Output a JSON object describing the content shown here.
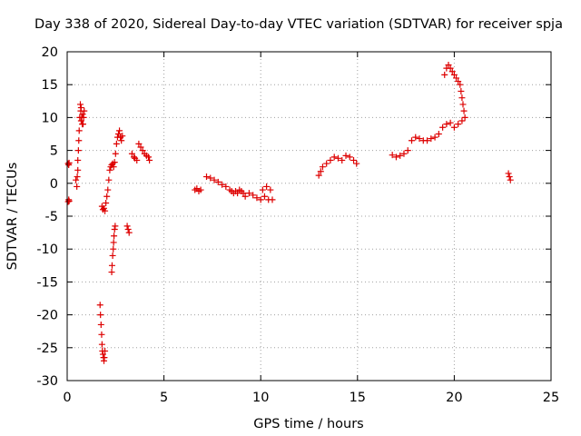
{
  "chart_data": {
    "type": "scatter",
    "title": "Day 338 of 2020, Sidereal Day-to-day VTEC variation (SDTVAR) for receiver spja",
    "xlabel": "GPS time / hours",
    "ylabel": "SDTVAR / TECUs",
    "xlim": [
      0,
      25
    ],
    "ylim": [
      -30,
      20
    ],
    "xticks": [
      "0",
      "5",
      "10",
      "15",
      "20",
      "25"
    ],
    "yticks": [
      "-30",
      "-25",
      "-20",
      "-15",
      "-10",
      "-5",
      "0",
      "5",
      "10",
      "15",
      "20"
    ],
    "grid": true,
    "marker": "plus",
    "color": "#dd0000",
    "x": [
      0.05,
      0.08,
      0.1,
      0.05,
      0.08,
      0.1,
      0.45,
      0.5,
      0.52,
      0.55,
      0.55,
      0.58,
      0.6,
      0.62,
      0.65,
      0.68,
      0.7,
      0.72,
      0.72,
      0.75,
      0.78,
      0.8,
      0.82,
      0.85,
      0.88,
      1.7,
      1.72,
      1.75,
      1.78,
      1.8,
      1.82,
      1.85,
      1.88,
      1.9,
      1.92,
      1.95,
      1.8,
      1.85,
      1.9,
      1.95,
      2.0,
      2.05,
      2.1,
      2.15,
      2.2,
      2.25,
      2.3,
      2.35,
      2.4,
      2.45,
      2.5,
      2.55,
      2.6,
      2.65,
      2.7,
      2.75,
      2.8,
      2.85,
      2.3,
      2.32,
      2.35,
      2.38,
      2.4,
      2.42,
      2.45,
      2.48,
      3.1,
      3.15,
      3.2,
      3.35,
      3.45,
      3.5,
      3.6,
      3.7,
      3.8,
      3.9,
      4.0,
      4.1,
      4.2,
      4.25,
      6.6,
      6.7,
      6.8,
      6.9,
      7.2,
      7.4,
      7.6,
      7.8,
      8.0,
      8.2,
      8.4,
      8.5,
      8.6,
      8.7,
      8.8,
      8.9,
      9.0,
      9.1,
      9.2,
      9.4,
      9.6,
      9.8,
      10.0,
      10.1,
      10.2,
      10.3,
      10.4,
      10.5,
      10.6,
      13.0,
      13.1,
      13.2,
      13.4,
      13.6,
      13.8,
      14.0,
      14.2,
      14.4,
      14.6,
      14.8,
      14.95,
      16.8,
      17.0,
      17.2,
      17.4,
      17.6,
      17.8,
      18.0,
      18.2,
      18.4,
      18.6,
      18.8,
      19.0,
      19.2,
      19.4,
      19.6,
      19.8,
      20.0,
      20.2,
      20.4,
      20.55,
      20.5,
      20.45,
      20.4,
      20.35,
      20.3,
      20.2,
      20.1,
      20.0,
      19.9,
      19.8,
      19.7,
      19.6,
      19.5,
      22.8,
      22.85,
      22.9
    ],
    "y": [
      3.0,
      2.8,
      3.1,
      -2.8,
      -2.5,
      -2.7,
      0.5,
      -0.5,
      1.0,
      2.0,
      3.5,
      5.0,
      6.5,
      8.0,
      10.0,
      12.0,
      11.0,
      9.5,
      11.5,
      10.0,
      9.0,
      10.5,
      9.0,
      10.0,
      11.0,
      -18.5,
      -20.0,
      -21.5,
      -23.0,
      -24.5,
      -25.5,
      -26.0,
      -26.5,
      -27.0,
      -26.5,
      -25.5,
      -3.5,
      -4.0,
      -3.8,
      -4.2,
      -3.0,
      -2.0,
      -1.0,
      0.5,
      2.0,
      2.5,
      2.8,
      3.0,
      2.5,
      3.2,
      4.5,
      6.0,
      7.0,
      7.5,
      8.0,
      7.0,
      6.5,
      7.2,
      -13.5,
      -12.5,
      -11.0,
      -10.0,
      -9.0,
      -8.0,
      -7.0,
      -6.5,
      -6.5,
      -7.0,
      -7.5,
      4.5,
      4.0,
      3.8,
      3.5,
      6.0,
      5.5,
      5.0,
      4.5,
      4.2,
      4.0,
      3.5,
      -1.0,
      -0.8,
      -1.2,
      -1.0,
      1.0,
      0.8,
      0.5,
      0.2,
      -0.2,
      -0.5,
      -1.0,
      -1.2,
      -1.5,
      -1.2,
      -1.5,
      -1.0,
      -1.2,
      -1.5,
      -2.0,
      -1.5,
      -1.8,
      -2.2,
      -2.5,
      -1.0,
      -2.0,
      -0.5,
      -2.5,
      -1.0,
      -2.5,
      1.2,
      1.8,
      2.5,
      3.0,
      3.5,
      4.0,
      3.8,
      3.5,
      4.2,
      4.0,
      3.5,
      3.0,
      4.3,
      4.0,
      4.2,
      4.5,
      5.0,
      6.5,
      7.0,
      6.8,
      6.5,
      6.5,
      6.8,
      7.0,
      7.5,
      8.5,
      9.0,
      9.2,
      8.5,
      9.0,
      9.5,
      10.0,
      11.0,
      12.0,
      13.0,
      14.0,
      15.0,
      15.5,
      16.0,
      16.5,
      17.0,
      17.5,
      18.0,
      17.5,
      16.5,
      1.5,
      1.0,
      0.5
    ]
  }
}
